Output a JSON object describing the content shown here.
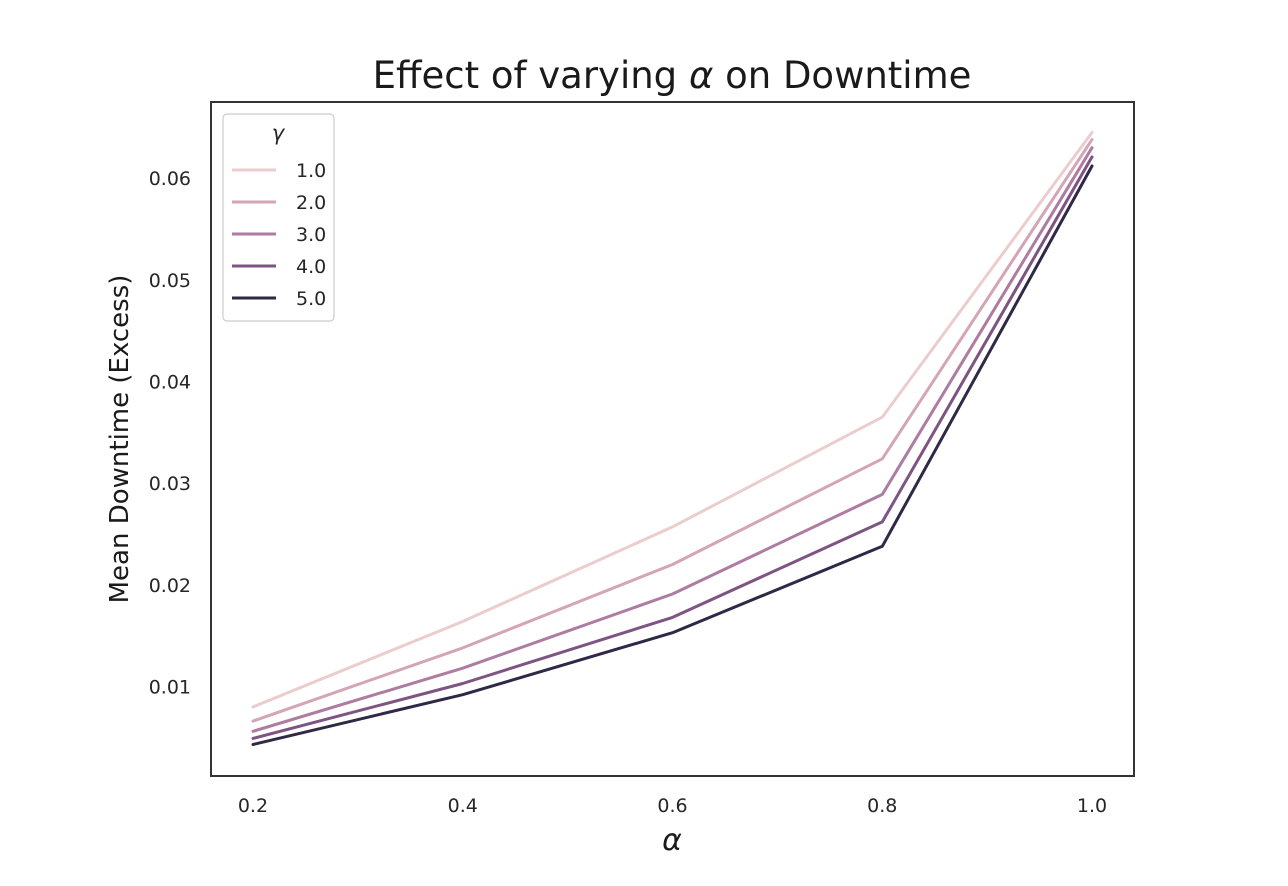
{
  "chart_data": {
    "type": "line",
    "title_prefix": "Effect of varying ",
    "title_symbol": "α",
    "title_suffix": " on Downtime",
    "xlabel": "α",
    "ylabel": "Mean Downtime (Excess)",
    "x": [
      0.2,
      0.4,
      0.6,
      0.8,
      1.0
    ],
    "xticks": [
      "0.2",
      "0.4",
      "0.6",
      "0.8",
      "1.0"
    ],
    "xlim": [
      0.16,
      1.04
    ],
    "yticks": [
      "0.01",
      "0.02",
      "0.03",
      "0.04",
      "0.05",
      "0.06"
    ],
    "ytick_values": [
      0.01,
      0.02,
      0.03,
      0.04,
      0.05,
      0.06
    ],
    "ylim": [
      0.0012,
      0.0675
    ],
    "grid": false,
    "legend": {
      "title": "γ",
      "position": "top-left"
    },
    "series": [
      {
        "name": "1.0",
        "color": "#ebcdcd",
        "values": [
          0.008,
          0.0164,
          0.0257,
          0.0365,
          0.0645
        ]
      },
      {
        "name": "2.0",
        "color": "#d4a5b5",
        "values": [
          0.0066,
          0.0138,
          0.022,
          0.0324,
          0.0638
        ]
      },
      {
        "name": "3.0",
        "color": "#ae7ba1",
        "values": [
          0.0056,
          0.0118,
          0.0191,
          0.0289,
          0.063
        ]
      },
      {
        "name": "4.0",
        "color": "#7d5482",
        "values": [
          0.0049,
          0.0103,
          0.0168,
          0.0262,
          0.0621
        ]
      },
      {
        "name": "5.0",
        "color": "#2f2846",
        "values": [
          0.0043,
          0.0092,
          0.0153,
          0.0238,
          0.0612
        ]
      }
    ]
  }
}
